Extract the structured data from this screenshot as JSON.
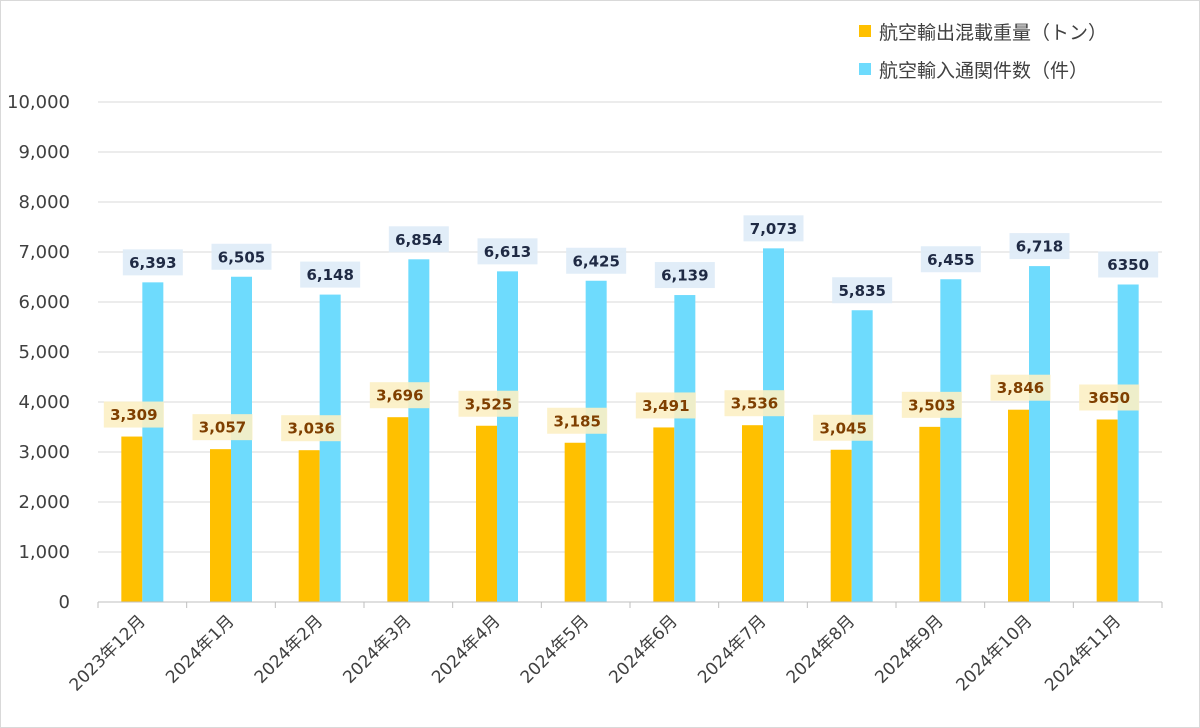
{
  "chart_data": {
    "type": "bar",
    "categories": [
      "2023年12月",
      "2024年1月",
      "2024年2月",
      "2024年3月",
      "2024年4月",
      "2024年5月",
      "2024年6月",
      "2024年7月",
      "2024年8月",
      "2024年9月",
      "2024年10月",
      "2024年11月"
    ],
    "series": [
      {
        "name": "航空輸出混載重量（トン）",
        "color": "#FFC000",
        "label_bg": "#FCEFC4",
        "label_color": "#7F3F00",
        "values": [
          3309,
          3057,
          3036,
          3696,
          3525,
          3185,
          3491,
          3536,
          3045,
          3503,
          3846,
          3650
        ],
        "labels": [
          "3,309",
          "3,057",
          "3,036",
          "3,696",
          "3,525",
          "3,185",
          "3,491",
          "3,536",
          "3,045",
          "3,503",
          "3,846",
          "3650"
        ]
      },
      {
        "name": "航空輸入通関件数（件）",
        "color": "#6EDBFD",
        "label_bg": "#DEEBF7",
        "label_color": "#1F2A44",
        "values": [
          6393,
          6505,
          6148,
          6854,
          6613,
          6425,
          6139,
          7073,
          5835,
          6455,
          6718,
          6350
        ],
        "labels": [
          "6,393",
          "6,505",
          "6,148",
          "6,854",
          "6,613",
          "6,425",
          "6,139",
          "7,073",
          "5,835",
          "6,455",
          "6,718",
          "6350"
        ]
      }
    ],
    "ylim": [
      0,
      10000
    ],
    "y_ticks": [
      0,
      1000,
      2000,
      3000,
      4000,
      5000,
      6000,
      7000,
      8000,
      9000,
      10000
    ],
    "y_tick_labels": [
      "0",
      "1,000",
      "2,000",
      "3,000",
      "4,000",
      "5,000",
      "6,000",
      "7,000",
      "8,000",
      "9,000",
      "10,000"
    ],
    "grid": true,
    "legend_position": "top-right",
    "gridline_color": "#D9D9D9"
  }
}
